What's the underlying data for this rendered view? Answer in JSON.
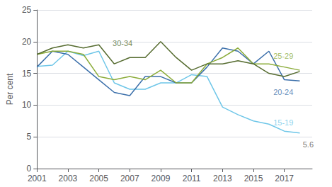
{
  "chart_data": {
    "type": "line",
    "ylabel": "Per cent",
    "x": [
      2001,
      2002,
      2003,
      2004,
      2005,
      2006,
      2007,
      2008,
      2009,
      2010,
      2011,
      2012,
      2013,
      2014,
      2015,
      2016,
      2017,
      2018
    ],
    "series": [
      {
        "name": "15-19",
        "color": "#6ec6e8",
        "label_x": 2016.2,
        "label_y": 7.3,
        "values": [
          16.1,
          16.3,
          18.5,
          17.8,
          18.5,
          13.5,
          12.5,
          12.5,
          13.5,
          13.5,
          14.8,
          14.5,
          9.7,
          8.5,
          7.5,
          7.0,
          5.9,
          5.6
        ]
      },
      {
        "name": "20-24",
        "color": "#3b6faa",
        "label_x": 2016.2,
        "label_y": 12.0,
        "values": [
          16.0,
          18.5,
          18.0,
          16.0,
          14.0,
          12.0,
          11.5,
          14.5,
          14.5,
          13.5,
          13.5,
          16.0,
          19.0,
          18.5,
          16.5,
          18.5,
          14.0,
          13.8
        ]
      },
      {
        "name": "25-29",
        "color": "#8aab38",
        "label_x": 2016.2,
        "label_y": 17.8,
        "values": [
          18.0,
          18.5,
          18.5,
          18.0,
          14.5,
          14.0,
          14.5,
          14.0,
          15.5,
          13.5,
          13.5,
          16.5,
          17.5,
          19.0,
          16.5,
          16.5,
          16.0,
          15.5
        ]
      },
      {
        "name": "30-34",
        "color": "#556b2f",
        "label_x": 2005.8,
        "label_y": 19.8,
        "values": [
          18.0,
          19.0,
          19.5,
          19.0,
          19.5,
          16.5,
          17.5,
          17.5,
          20.0,
          17.5,
          15.5,
          16.5,
          16.5,
          17.0,
          16.5,
          15.0,
          14.5,
          15.3
        ]
      }
    ],
    "annotations": [
      {
        "text": "5.6",
        "x": 2018.1,
        "y": 3.8,
        "color": "#555555"
      }
    ],
    "xlim": [
      2001,
      2018.8
    ],
    "xticks": [
      2001,
      2003,
      2005,
      2007,
      2009,
      2011,
      2013,
      2015,
      2017
    ],
    "ylim": [
      0,
      25
    ],
    "yticks": [
      0,
      5,
      10,
      15,
      20,
      25
    ],
    "grid": true
  }
}
